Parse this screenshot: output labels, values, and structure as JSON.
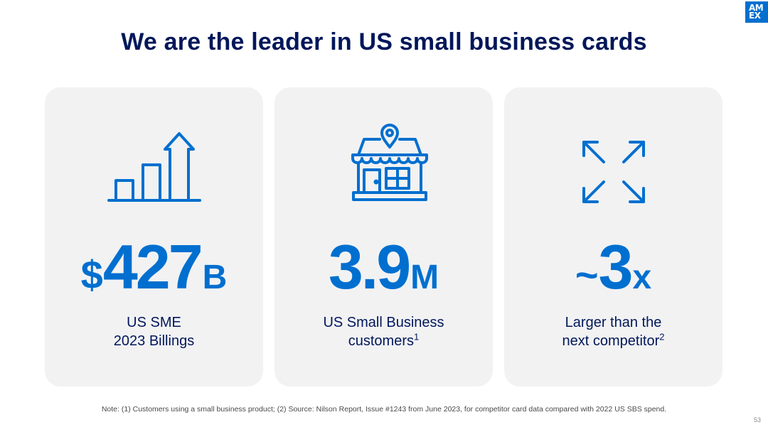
{
  "logo": {
    "line1": "AM",
    "line2": "EX"
  },
  "title": "We are the leader in US small business cards",
  "cards": [
    {
      "icon": "bar-chart-arrow-icon",
      "prefix": "$",
      "value": "427",
      "suffix": "B",
      "label_line1": "US SME",
      "label_line2": "2023 Billings",
      "footnote": ""
    },
    {
      "icon": "storefront-pin-icon",
      "prefix": "",
      "value": "3.9",
      "suffix": "M",
      "label_line1": "US Small Business",
      "label_line2": "customers",
      "footnote": "1"
    },
    {
      "icon": "expand-arrows-icon",
      "prefix": "~",
      "value": "3",
      "suffix": "x",
      "label_line1": "Larger than the",
      "label_line2": "next competitor",
      "footnote": "2"
    }
  ],
  "note": "Note: (1) Customers using a small business product; (2) Source: Nilson Report, Issue #1243 from June 2023, for competitor card data compared with 2022 US SBS spend.",
  "page_number": "53",
  "colors": {
    "navy": "#00175a",
    "blue": "#006fcf",
    "card_bg": "#f2f2f3"
  }
}
